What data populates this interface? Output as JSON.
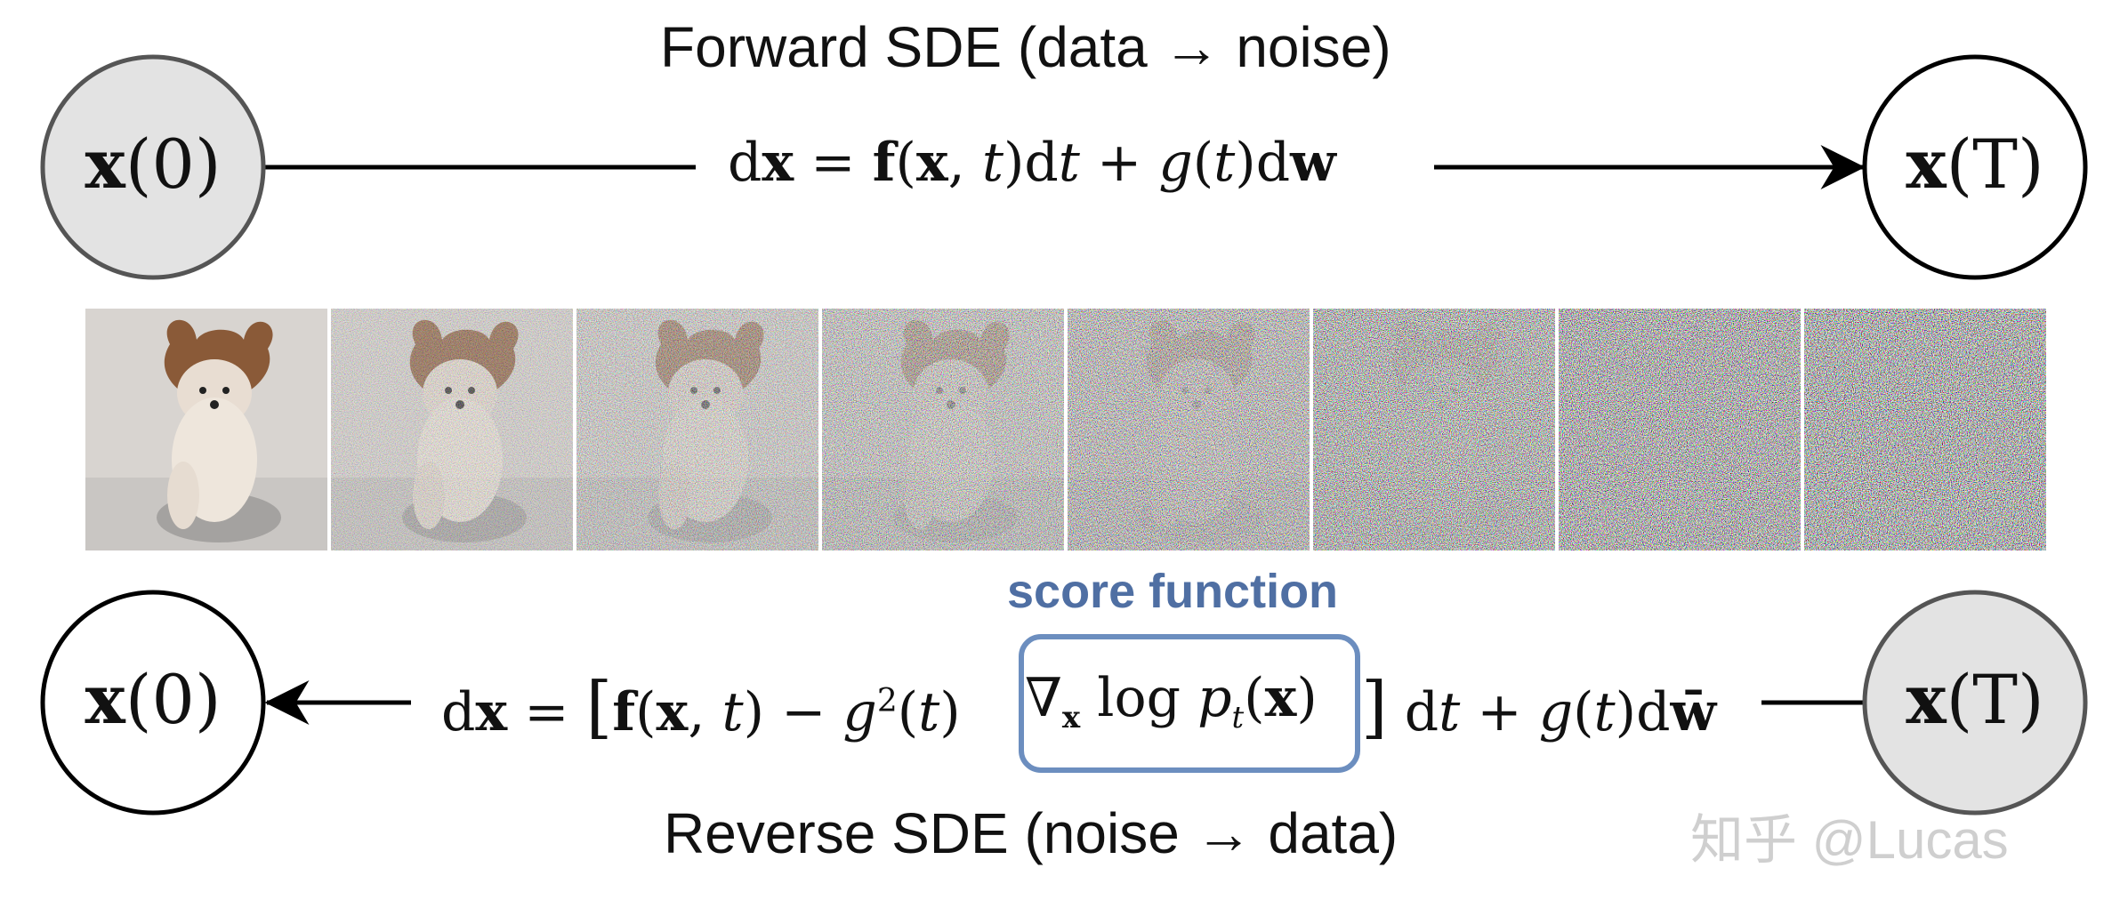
{
  "forward": {
    "title": "Forward SDE (data → noise)",
    "equation": {
      "left": "dx",
      "eq": "=",
      "f": "f",
      "args": "(x, t)dt + ",
      "g": "g",
      "gt": "(t)d",
      "w": "w"
    },
    "start_node": {
      "main": "x",
      "arg": "(0)"
    },
    "end_node": {
      "main": "x",
      "arg": "(T)"
    }
  },
  "reverse": {
    "title": "Reverse SDE (noise → data)",
    "equation": {
      "d": "d",
      "x": "x",
      "eq": "=",
      "open": "[",
      "f": "f",
      "fargs": "(x, t) − ",
      "g": "g",
      "sup": "2",
      "gt": "(t)",
      "score": "∇x log pt(x)",
      "close": "]",
      "dt": " dt + ",
      "g2": "g",
      "tail": "(t)d",
      "wbar": "w̄"
    },
    "start_node": {
      "main": "x",
      "arg": "(T)"
    },
    "end_node": {
      "main": "x",
      "arg": "(0)"
    }
  },
  "score_label": "score function",
  "watermark": "知乎 @Lucas",
  "colors": {
    "score_box": "#6c8ebf",
    "score_text": "#4f6fa3",
    "node_filled": "#e3e3e3",
    "node_stroke": "#555555",
    "line": "#000000"
  },
  "noise_levels": [
    0.0,
    0.25,
    0.4,
    0.55,
    0.7,
    0.82,
    0.92,
    1.0
  ]
}
